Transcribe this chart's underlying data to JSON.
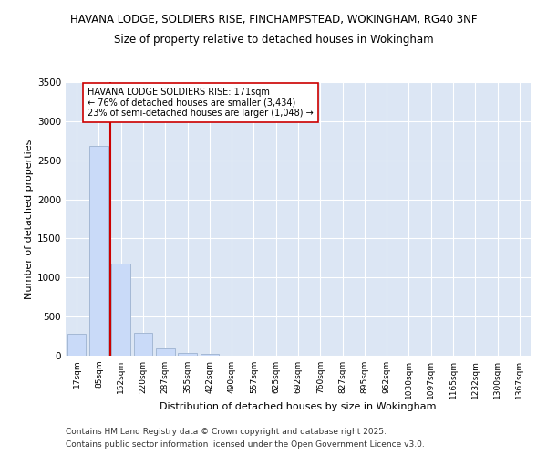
{
  "title1": "HAVANA LODGE, SOLDIERS RISE, FINCHAMPSTEAD, WOKINGHAM, RG40 3NF",
  "title2": "Size of property relative to detached houses in Wokingham",
  "xlabel": "Distribution of detached houses by size in Wokingham",
  "ylabel": "Number of detached properties",
  "bin_labels": [
    "17sqm",
    "85sqm",
    "152sqm",
    "220sqm",
    "287sqm",
    "355sqm",
    "422sqm",
    "490sqm",
    "557sqm",
    "625sqm",
    "692sqm",
    "760sqm",
    "827sqm",
    "895sqm",
    "962sqm",
    "1030sqm",
    "1097sqm",
    "1165sqm",
    "1232sqm",
    "1300sqm",
    "1367sqm"
  ],
  "bin_values": [
    275,
    2680,
    1180,
    295,
    90,
    35,
    20,
    0,
    0,
    0,
    0,
    0,
    0,
    0,
    0,
    0,
    0,
    0,
    0,
    0,
    0
  ],
  "bar_color": "#c9daf8",
  "bar_edge_color": "#a4b8d4",
  "vline_color": "#cc0000",
  "annotation_text": "HAVANA LODGE SOLDIERS RISE: 171sqm\n← 76% of detached houses are smaller (3,434)\n23% of semi-detached houses are larger (1,048) →",
  "annotation_box_color": "white",
  "annotation_box_edge": "#cc0000",
  "ylim": [
    0,
    3500
  ],
  "yticks": [
    0,
    500,
    1000,
    1500,
    2000,
    2500,
    3000,
    3500
  ],
  "background_color": "#dce6f4",
  "footer1": "Contains HM Land Registry data © Crown copyright and database right 2025.",
  "footer2": "Contains public sector information licensed under the Open Government Licence v3.0."
}
